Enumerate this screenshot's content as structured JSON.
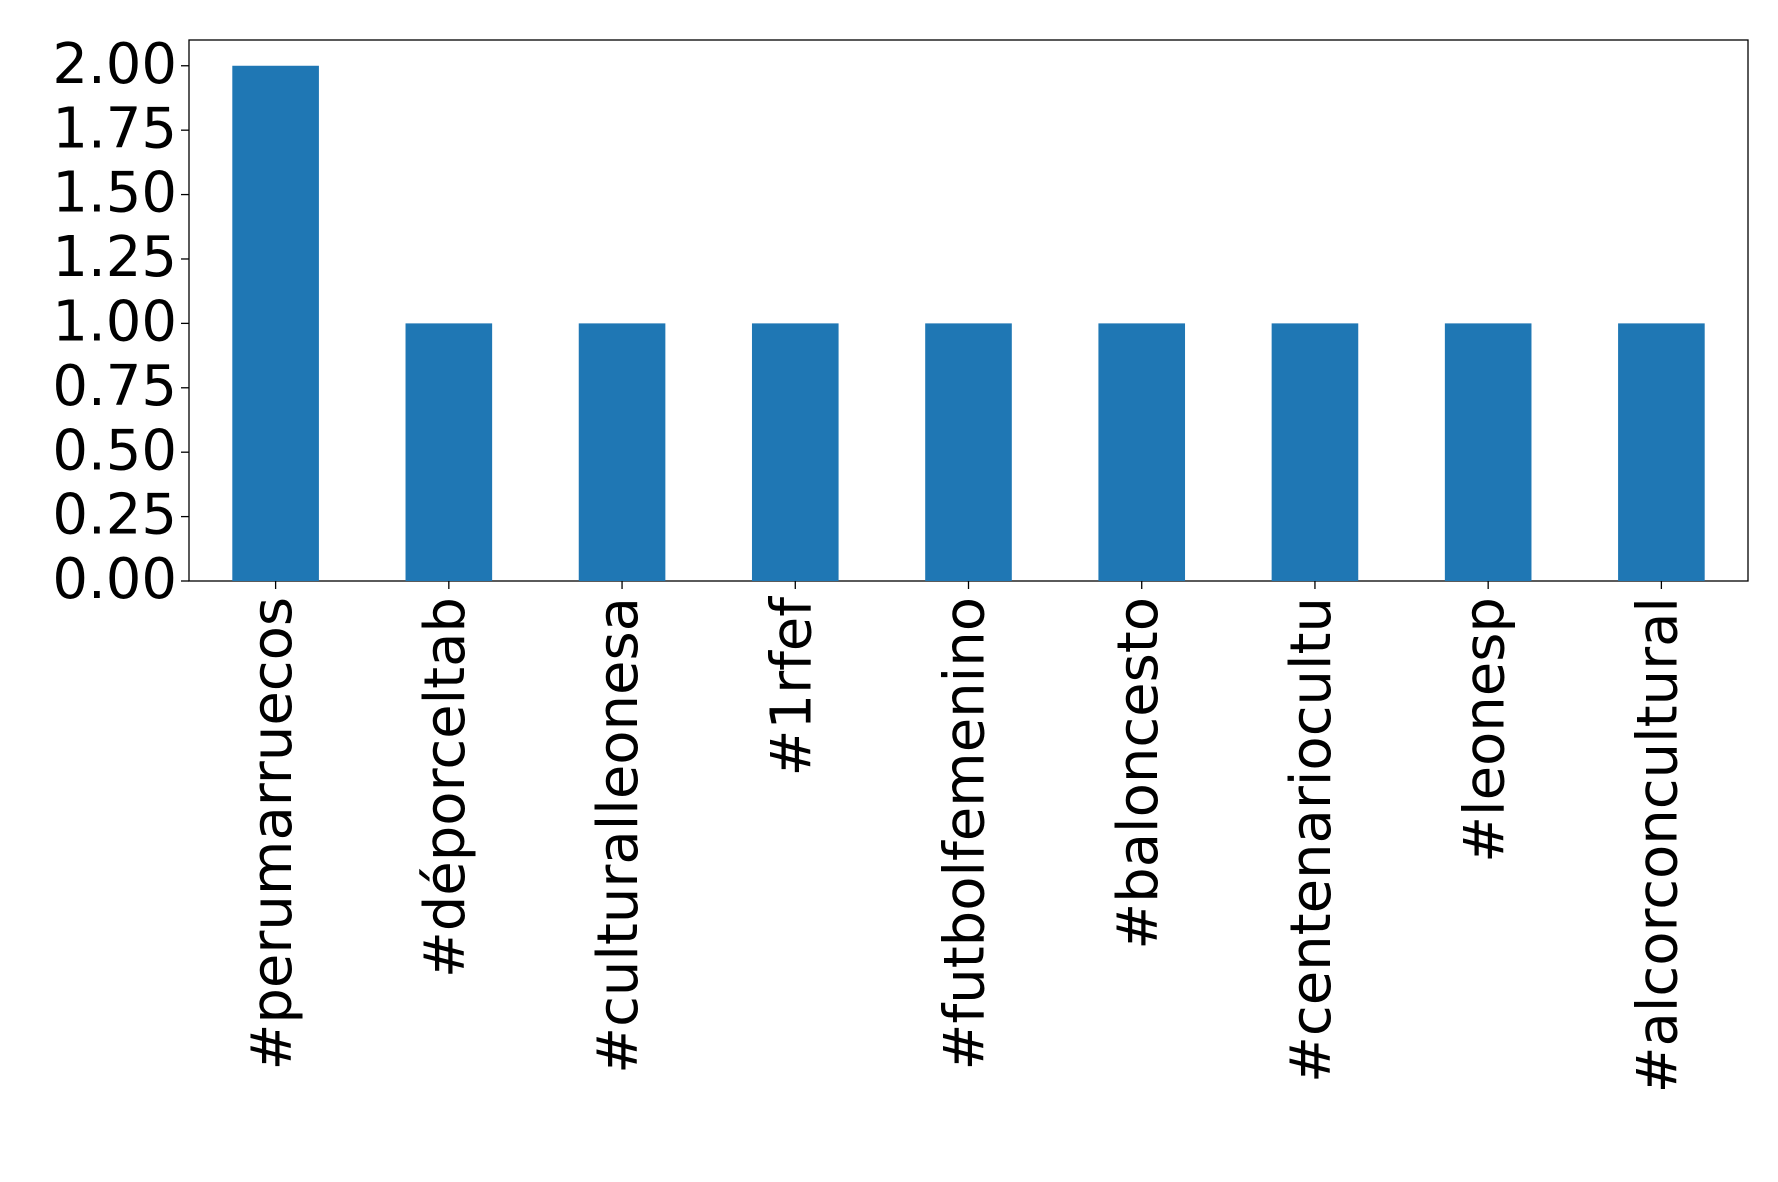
{
  "chart_data": {
    "type": "bar",
    "categories": [
      "#perumarruecos",
      "#déporceltab",
      "#culturalleonesa",
      "#1rfef",
      "#futbolfemenino",
      "#baloncesto",
      "#centenariocultu",
      "#leonesp",
      "#alcorconcultural"
    ],
    "values": [
      2,
      1,
      1,
      1,
      1,
      1,
      1,
      1,
      1
    ],
    "color": "#1f77b4",
    "ylim": [
      0,
      2.1
    ],
    "yticks": [
      {
        "value": 0,
        "label": "0.00"
      },
      {
        "value": 0.25,
        "label": "0.25"
      },
      {
        "value": 0.5,
        "label": "0.50"
      },
      {
        "value": 0.75,
        "label": "0.75"
      },
      {
        "value": 1,
        "label": "1.00"
      },
      {
        "value": 1.25,
        "label": "1.25"
      },
      {
        "value": 1.5,
        "label": "1.50"
      },
      {
        "value": 1.75,
        "label": "1.75"
      },
      {
        "value": 2,
        "label": "2.00"
      }
    ],
    "grid": false
  }
}
